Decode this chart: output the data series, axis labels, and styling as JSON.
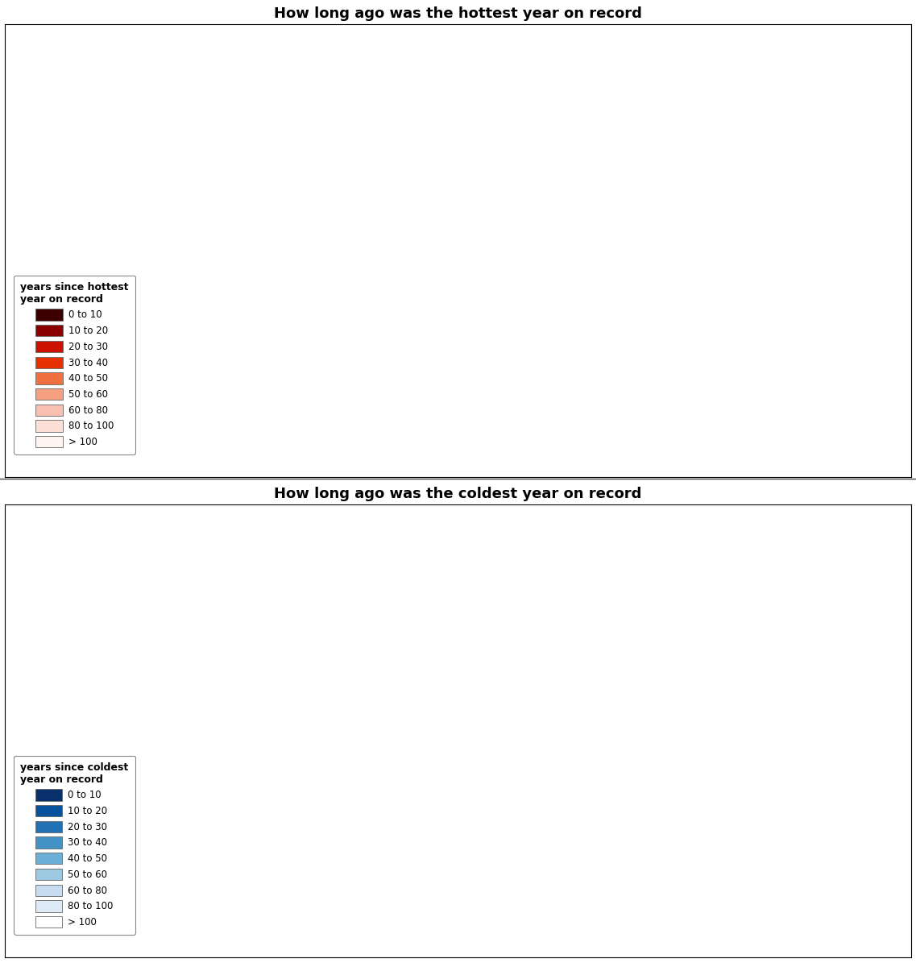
{
  "title_hot": "How long ago was the hottest year on record",
  "title_cold": "How long ago was the coldest year on record",
  "hot_legend_title": "years since hottest\nyear on record",
  "cold_legend_title": "years since coldest\nyear on record",
  "legend_labels": [
    "0 to 10",
    "10 to 20",
    "20 to 30",
    "30 to 40",
    "40 to 50",
    "50 to 60",
    "60 to 80",
    "80 to 100",
    "> 100"
  ],
  "hot_colors": [
    "#3d0000",
    "#8b0000",
    "#cc1100",
    "#e63000",
    "#f07040",
    "#f5a080",
    "#f8c0b0",
    "#fce0d8",
    "#fff5f0"
  ],
  "cold_colors": [
    "#08306b",
    "#08519c",
    "#2171b5",
    "#4292c6",
    "#6baed6",
    "#9ecae1",
    "#c6dbef",
    "#deebf7",
    "#ffffff"
  ],
  "background_color": "#ffffff",
  "fig_width": 11.37,
  "fig_height": 12.0,
  "title_fontsize": 13,
  "legend_title_fontsize": 9,
  "legend_label_fontsize": 8.5,
  "hot_country_colors": {
    "Russia": 0,
    "China": 0,
    "India": 0,
    "Brazil": 1,
    "Australia": 1,
    "United States of America": 3,
    "Canada": 1,
    "Argentina": 1,
    "Algeria": 0,
    "Sudan": 0,
    "Libya": 0,
    "Egypt": 0,
    "Saudi Arabia": 0,
    "Iran": 0,
    "Iraq": 0,
    "Turkey": 0,
    "Nigeria": 0,
    "Ethiopia": 0,
    "Tanzania": 0,
    "Kenya": 0,
    "South Africa": 0,
    "Angola": 0,
    "Congo": 0,
    "Democratic Republic of the Congo": 0,
    "Niger": 0,
    "Mali": 0,
    "Chad": 0,
    "Mauritania": 0,
    "Mozambique": 0,
    "Zambia": 0,
    "Zimbabwe": 0,
    "Madagascar": 0,
    "Somalia": 0,
    "Cameroon": 0,
    "Ivory Coast": 0,
    "Ghana": 0,
    "Venezuela": 1,
    "Colombia": 1,
    "Peru": 1,
    "Bolivia": 1,
    "Chile": 1,
    "Paraguay": 1,
    "Uruguay": 1,
    "Ecuador": 1,
    "Mexico": 0,
    "Mongolia": 0,
    "Kazakhstan": 0,
    "Uzbekistan": 0,
    "Pakistan": 0,
    "Afghanistan": 0,
    "Myanmar": 0,
    "Thailand": 0,
    "Vietnam": 0,
    "Indonesia": 0,
    "Philippines": 0,
    "Malaysia": 0,
    "Japan": 1,
    "South Korea": 1,
    "North Korea": 1,
    "Germany": 1,
    "France": 1,
    "Spain": 1,
    "Italy": 1,
    "Poland": 1,
    "Ukraine": 0,
    "Sweden": 1,
    "Norway": 1,
    "Finland": 1,
    "United Kingdom": 1,
    "Greenland": 3,
    "Iceland": 2,
    "New Zealand": 1,
    "Papua New Guinea": 0,
    "Morocco": 0,
    "Tunisia": 0,
    "Senegal": 0,
    "Botswana": 0,
    "Namibia": 0,
    "Gabon": 0,
    "Laos": 0,
    "Cambodia": 0,
    "Nepal": 0,
    "Bangladesh": 0,
    "Sri Lanka": 0,
    "Cuba": 1,
    "Guatemala": 0,
    "Honduras": 0,
    "Nicaragua": 0,
    "Costa Rica": 0,
    "Panama": 0,
    "Romania": 1,
    "Bulgaria": 1,
    "Greece": 1,
    "Portugal": 1,
    "Hungary": 1,
    "Czech Republic": 1,
    "Slovakia": 1,
    "Austria": 1,
    "Switzerland": 1,
    "Belarus": 1,
    "Lithuania": 1,
    "Latvia": 1,
    "Estonia": 1,
    "Turkmenistan": 0,
    "Azerbaijan": 0,
    "Georgia": 1,
    "Armenia": 0,
    "Syria": 0,
    "Jordan": 0,
    "Israel": 0,
    "Lebanon": 0,
    "Oman": 0,
    "Yemen": 0,
    "Kuwait": 0,
    "Qatar": 0,
    "Bahrain": 0,
    "United Arab Emirates": 0,
    "Eritrea": 0,
    "Djibouti": 0,
    "Rwanda": 0,
    "Burundi": 0,
    "Uganda": 0,
    "Malawi": 0,
    "Lesotho": 0,
    "Swaziland": 0,
    "Benin": 0,
    "Togo": 0,
    "Burkina Faso": 0,
    "Guinea": 0,
    "Sierra Leone": 0,
    "Liberia": 0,
    "Central African Republic": 0,
    "Equatorial Guinea": 0,
    "South Sudan": 0,
    "Tajikistan": 0,
    "Kyrgyzstan": 0,
    "Bhutan": 0,
    "Brunei": 0,
    "East Timor": 0,
    "Serbia": 1,
    "Croatia": 1,
    "Bosnia and Herzegovina": 1,
    "Slovenia": 1,
    "Macedonia": 1,
    "Albania": 1,
    "Montenegro": 1,
    "Moldova": 1,
    "Ireland": 1,
    "Denmark": 1,
    "Netherlands": 1,
    "Belgium": 1,
    "Luxembourg": 1
  },
  "cold_country_colors": {
    "Russia": 6,
    "China": 7,
    "India": 7,
    "Brazil": 8,
    "Australia": 5,
    "United States of America": 5,
    "Canada": 4,
    "Argentina": 8,
    "Algeria": 8,
    "Sudan": 8,
    "Libya": 8,
    "Egypt": 8,
    "Saudi Arabia": 8,
    "Iran": 7,
    "Iraq": 2,
    "Turkey": 5,
    "Nigeria": 8,
    "Ethiopia": 8,
    "Tanzania": 8,
    "Kenya": 8,
    "South Africa": 8,
    "Angola": 8,
    "Congo": 8,
    "Democratic Republic of the Congo": 7,
    "Niger": 8,
    "Mali": 8,
    "Chad": 8,
    "Mauritania": 8,
    "Mozambique": 8,
    "Zambia": 8,
    "Zimbabwe": 8,
    "Madagascar": 8,
    "Somalia": 8,
    "Cameroon": 8,
    "Ivory Coast": 8,
    "Ghana": 8,
    "Venezuela": 8,
    "Colombia": 8,
    "Peru": 8,
    "Bolivia": 8,
    "Chile": 8,
    "Paraguay": 8,
    "Uruguay": 8,
    "Ecuador": 8,
    "Mexico": 8,
    "Mongolia": 5,
    "Kazakhstan": 6,
    "Uzbekistan": 6,
    "Pakistan": 7,
    "Afghanistan": 7,
    "Myanmar": 8,
    "Thailand": 8,
    "Vietnam": 8,
    "Indonesia": 8,
    "Philippines": 8,
    "Malaysia": 8,
    "Japan": 5,
    "South Korea": 4,
    "North Korea": 5,
    "Germany": 7,
    "France": 7,
    "Spain": 7,
    "Italy": 7,
    "Poland": 6,
    "Ukraine": 5,
    "Sweden": 4,
    "Norway": 4,
    "Finland": 5,
    "United Kingdom": 6,
    "Greenland": 3,
    "Iceland": 3,
    "New Zealand": 5,
    "Papua New Guinea": 8,
    "Morocco": 8,
    "Tunisia": 8,
    "Senegal": 8,
    "Botswana": 8,
    "Namibia": 8,
    "Gabon": 8,
    "Laos": 8,
    "Cambodia": 8,
    "Nepal": 6,
    "Bangladesh": 7,
    "Sri Lanka": 8,
    "Cuba": 8,
    "Guatemala": 8,
    "Honduras": 8,
    "Nicaragua": 8,
    "Costa Rica": 8,
    "Panama": 8,
    "Romania": 6,
    "Bulgaria": 6,
    "Greece": 7,
    "Portugal": 7,
    "Hungary": 6,
    "Czech Republic": 6,
    "Slovakia": 6,
    "Austria": 7,
    "Switzerland": 6,
    "Belarus": 5,
    "Lithuania": 5,
    "Latvia": 5,
    "Estonia": 5,
    "Turkmenistan": 6,
    "Azerbaijan": 5,
    "Georgia": 5,
    "Armenia": 5,
    "Syria": 3,
    "Jordan": 7,
    "Israel": 7,
    "Lebanon": 5,
    "Oman": 8,
    "Yemen": 8,
    "Kuwait": 4,
    "Qatar": 8,
    "Bahrain": 8,
    "United Arab Emirates": 8,
    "Eritrea": 8,
    "Djibouti": 8,
    "Rwanda": 8,
    "Burundi": 8,
    "Uganda": 8,
    "Malawi": 8,
    "Lesotho": 8,
    "Swaziland": 8,
    "Benin": 8,
    "Togo": 8,
    "Burkina Faso": 8,
    "Guinea": 8,
    "Sierra Leone": 8,
    "Liberia": 8,
    "Central African Republic": 8,
    "Equatorial Guinea": 8,
    "South Sudan": 8,
    "Tajikistan": 5,
    "Kyrgyzstan": 5,
    "Bhutan": 7,
    "Brunei": 8,
    "East Timor": 8,
    "Serbia": 6,
    "Croatia": 6,
    "Bosnia and Herzegovina": 6,
    "Slovenia": 6,
    "Macedonia": 6,
    "Albania": 6,
    "Montenegro": 6,
    "Moldova": 5,
    "Ireland": 6,
    "Denmark": 5,
    "Netherlands": 6,
    "Belgium": 6,
    "Luxembourg": 6
  }
}
